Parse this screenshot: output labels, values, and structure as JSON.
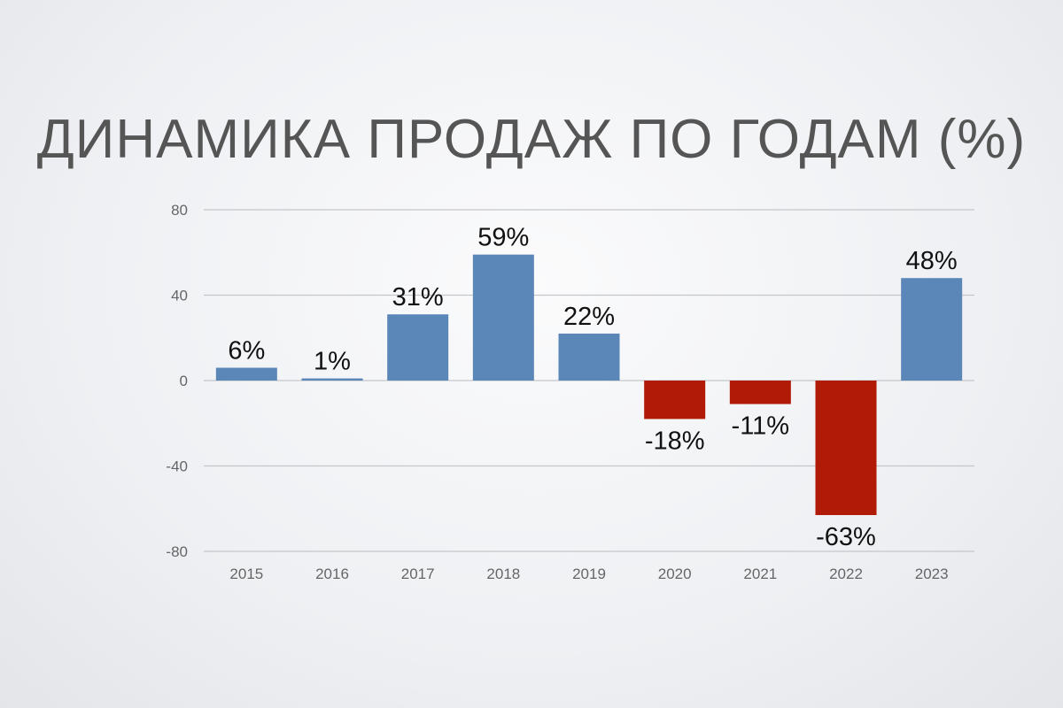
{
  "chart_data": {
    "type": "bar",
    "title": "ДИНАМИКА ПРОДАЖ ПО ГОДАМ (%)",
    "categories": [
      "2015",
      "2016",
      "2017",
      "2018",
      "2019",
      "2020",
      "2021",
      "2022",
      "2023"
    ],
    "values": [
      6,
      1,
      31,
      59,
      22,
      -18,
      -11,
      -63,
      48
    ],
    "data_labels": [
      "6%",
      "1%",
      "31%",
      "59%",
      "22%",
      "-18%",
      "-11%",
      "-63%",
      "48%"
    ],
    "ylim": [
      -80,
      80
    ],
    "yticks": [
      80,
      40,
      0,
      -40,
      -80
    ],
    "grid": true,
    "xlabel": "",
    "ylabel": "",
    "colors": {
      "positive": "#5b86b8",
      "negative": "#b01a06"
    }
  }
}
